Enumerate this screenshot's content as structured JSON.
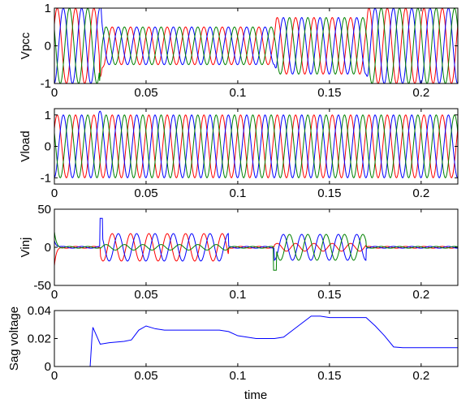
{
  "figure": {
    "xlabel": "time",
    "xticks": [
      "0",
      "0.05",
      "0.1",
      "0.15",
      "0.2"
    ]
  },
  "colors": {
    "background": "#ffffff",
    "axis": "#000000",
    "phase_a": "#ff0000",
    "phase_b": "#0000ff",
    "phase_c": "#008000"
  },
  "chart_data": [
    {
      "type": "line",
      "ylabel": "Vpcc",
      "xlim": [
        0,
        0.22
      ],
      "ylim": [
        -1,
        1
      ],
      "yticks": [
        "1",
        "0",
        "-1"
      ],
      "yticks_values": [
        1,
        0,
        -1
      ],
      "series_colors": [
        "#ff0000",
        "#0000ff",
        "#008000"
      ],
      "frequency_hz": 100,
      "events": [
        {
          "t": 0.025,
          "description_value": "sag start"
        },
        {
          "t": 0.12,
          "description_value": "sag change"
        }
      ],
      "amplitude_profile": [
        [
          0,
          1.0
        ],
        [
          0.025,
          1.0
        ],
        [
          0.026,
          0.5
        ],
        [
          0.12,
          0.5
        ],
        [
          0.121,
          0.75
        ],
        [
          0.17,
          0.75
        ],
        [
          0.171,
          1.0
        ],
        [
          0.22,
          1.0
        ]
      ]
    },
    {
      "type": "line",
      "ylabel": "Vload",
      "xlim": [
        0,
        0.22
      ],
      "ylim": [
        -1.2,
        1.2
      ],
      "yticks": [
        "1",
        "0",
        "-1"
      ],
      "yticks_values": [
        1,
        0,
        -1
      ],
      "series_colors": [
        "#ff0000",
        "#0000ff",
        "#008000"
      ],
      "frequency_hz": 100,
      "amplitude": 1.0
    },
    {
      "type": "line",
      "ylabel": "Vinj",
      "xlim": [
        0,
        0.22
      ],
      "ylim": [
        -50,
        50
      ],
      "yticks": [
        "50",
        "0",
        "-50"
      ],
      "yticks_values": [
        50,
        0,
        -50
      ],
      "series_colors": [
        "#ff0000",
        "#0000ff",
        "#008000"
      ],
      "spikes": [
        {
          "t": 0.025,
          "value": 38
        },
        {
          "t": 0.025,
          "value": -18
        },
        {
          "t": 0.12,
          "value": -30
        }
      ],
      "oscillation_windows": [
        {
          "t0": 0.025,
          "t1": 0.095,
          "amplitude": 18
        },
        {
          "t0": 0.12,
          "t1": 0.17,
          "amplitude": 17
        }
      ]
    },
    {
      "type": "line",
      "ylabel": "Sag voltage",
      "xlim": [
        0,
        0.22
      ],
      "ylim": [
        0,
        0.04
      ],
      "yticks": [
        "0.04",
        "0.02",
        "0"
      ],
      "yticks_values": [
        0.04,
        0.02,
        0
      ],
      "series_colors": [
        "#0000ff"
      ],
      "x": [
        0,
        0.0195,
        0.0205,
        0.021,
        0.023,
        0.025,
        0.03,
        0.038,
        0.042,
        0.046,
        0.05,
        0.055,
        0.06,
        0.07,
        0.08,
        0.09,
        0.095,
        0.1,
        0.105,
        0.11,
        0.115,
        0.12,
        0.125,
        0.13,
        0.135,
        0.14,
        0.145,
        0.15,
        0.155,
        0.16,
        0.165,
        0.17,
        0.175,
        0.18,
        0.185,
        0.19,
        0.2,
        0.21,
        0.22
      ],
      "y": [
        0,
        0,
        0.021,
        0.028,
        0.022,
        0.016,
        0.017,
        0.018,
        0.019,
        0.026,
        0.029,
        0.027,
        0.026,
        0.026,
        0.026,
        0.026,
        0.025,
        0.022,
        0.021,
        0.02,
        0.02,
        0.02,
        0.021,
        0.026,
        0.031,
        0.036,
        0.036,
        0.035,
        0.035,
        0.035,
        0.035,
        0.035,
        0.029,
        0.022,
        0.014,
        0.0135,
        0.0135,
        0.0135,
        0.0135
      ]
    }
  ]
}
